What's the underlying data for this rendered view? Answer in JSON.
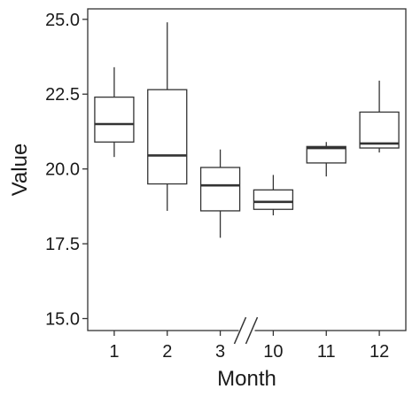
{
  "chart_data": {
    "type": "box",
    "title": "",
    "xlabel": "Month",
    "ylabel": "Value",
    "ylim": [
      14.6,
      25.35
    ],
    "y_ticks": [
      15.0,
      17.5,
      20.0,
      22.5,
      25.0
    ],
    "y_tick_labels": [
      "15.0",
      "17.5",
      "20.0",
      "22.5",
      "25.0"
    ],
    "categories": [
      "1",
      "2",
      "3",
      "10",
      "11",
      "12"
    ],
    "axis_break": {
      "between": [
        "3",
        "10"
      ]
    },
    "grid": false,
    "boxes": [
      {
        "category": "1",
        "min": 20.4,
        "q1": 20.9,
        "median": 21.5,
        "q3": 22.4,
        "max": 23.4
      },
      {
        "category": "2",
        "min": 18.6,
        "q1": 19.5,
        "median": 20.45,
        "q3": 22.65,
        "max": 24.9
      },
      {
        "category": "3",
        "min": 17.7,
        "q1": 18.6,
        "median": 19.45,
        "q3": 20.05,
        "max": 20.65
      },
      {
        "category": "10",
        "min": 18.45,
        "q1": 18.65,
        "median": 18.9,
        "q3": 19.3,
        "max": 19.8
      },
      {
        "category": "11",
        "min": 19.75,
        "q1": 20.2,
        "median": 20.7,
        "q3": 20.75,
        "max": 20.9
      },
      {
        "category": "12",
        "min": 20.55,
        "q1": 20.7,
        "median": 20.85,
        "q3": 21.9,
        "max": 22.95
      }
    ]
  }
}
